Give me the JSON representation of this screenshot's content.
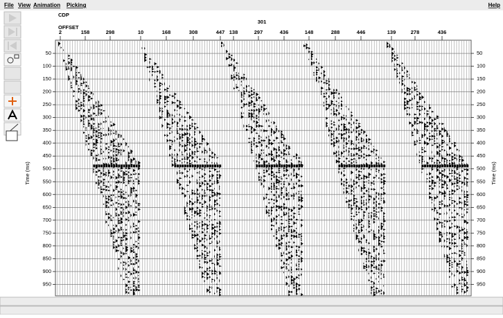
{
  "menu": [
    "File",
    "View",
    "Animation",
    "Picking"
  ],
  "help": "Help",
  "header": {
    "cdp_label": "CDP",
    "cdp_value": "301",
    "offset_label": "OFFSET",
    "offsets": [
      2,
      158,
      298,
      10,
      168,
      308,
      447,
      138,
      297,
      436,
      148,
      288,
      446,
      139,
      278,
      436
    ]
  },
  "time_axis": {
    "label": "Time (ms)",
    "ticks": [
      50,
      100,
      150,
      200,
      250,
      300,
      350,
      400,
      450,
      500,
      550,
      600,
      650,
      700,
      750,
      800,
      850,
      900,
      950
    ]
  }
}
